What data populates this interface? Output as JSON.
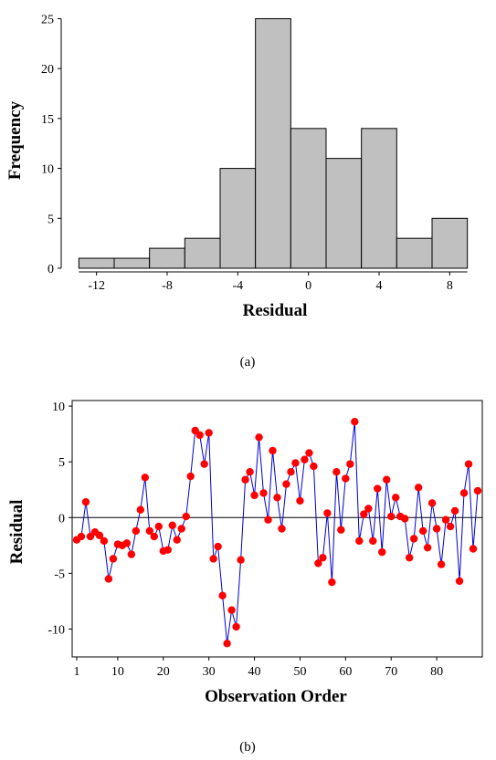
{
  "chart_data": [
    {
      "type": "bar",
      "histogram": true,
      "xlabel": "Residual",
      "ylabel": "Frequency",
      "caption": "(a)",
      "bin_width": 2,
      "bin_centers": [
        -12,
        -10,
        -8,
        -6,
        -4,
        -2,
        0,
        2,
        4,
        6,
        8
      ],
      "values": [
        1,
        1,
        2,
        3,
        10,
        25,
        14,
        11,
        14,
        3,
        5
      ],
      "xticks": [
        "-12",
        "-8",
        "-4",
        "0",
        "4",
        "8"
      ],
      "yticks": [
        "0",
        "5",
        "10",
        "15",
        "20",
        "25"
      ],
      "xlim": [
        -14,
        10
      ],
      "ylim": [
        0,
        25.5
      ],
      "bar_color": "#c0c0c0"
    },
    {
      "type": "line",
      "markers": true,
      "xlabel": "Observation Order",
      "ylabel": "Residual",
      "caption": "(b)",
      "xticks": [
        "1",
        "10",
        "20",
        "30",
        "40",
        "50",
        "60",
        "70",
        "80"
      ],
      "yticks": [
        "10",
        "5",
        "0",
        "-5",
        "-10"
      ],
      "xlim": [
        0,
        90
      ],
      "ylim": [
        -12.5,
        10.5
      ],
      "reference_line": 0,
      "line_color": "#0000cc",
      "marker_color": "#ff0000",
      "values": [
        -2.0,
        -1.7,
        1.4,
        -1.7,
        -1.3,
        -1.6,
        -2.1,
        -5.5,
        -3.7,
        -2.4,
        -2.5,
        -2.3,
        -3.3,
        -1.2,
        0.7,
        3.6,
        -1.2,
        -1.7,
        -0.8,
        -3.0,
        -2.9,
        -0.7,
        -2.0,
        -1.0,
        0.1,
        3.7,
        7.8,
        7.4,
        4.8,
        7.6,
        -3.7,
        -2.6,
        -7.0,
        -11.3,
        -8.3,
        -9.8,
        -3.8,
        3.4,
        4.1,
        2.0,
        7.2,
        2.2,
        -0.2,
        6.0,
        1.8,
        -1.0,
        3.0,
        4.1,
        4.9,
        1.5,
        5.2,
        5.8,
        4.6,
        -4.1,
        -3.6,
        0.4,
        -5.8,
        4.1,
        -1.1,
        3.5,
        4.8,
        8.6,
        -2.1,
        0.3,
        0.8,
        -2.1,
        2.6,
        -3.1,
        3.4,
        0.1,
        1.8,
        0.1,
        -0.1,
        -3.6,
        -1.9,
        2.7,
        -1.2,
        -2.7,
        1.3,
        -1.0,
        -4.2,
        -0.2,
        -0.8,
        0.6,
        -5.7,
        2.2,
        4.8,
        -2.8,
        2.4
      ]
    }
  ]
}
